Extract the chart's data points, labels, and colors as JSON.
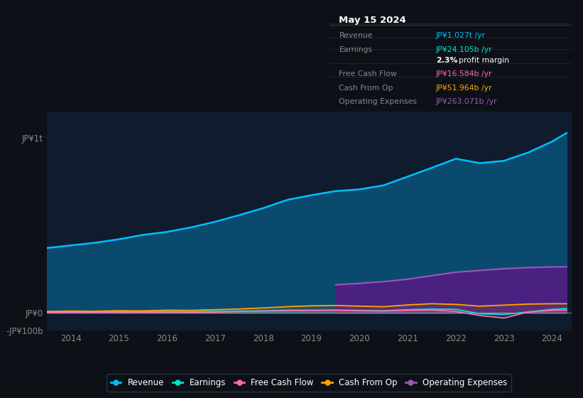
{
  "bg_color": "#0d1117",
  "plot_bg_color": "#0e1c2e",
  "title": "May 15 2024",
  "tooltip": {
    "Revenue": "JP¥1.027t /yr",
    "Earnings": "JP¥24.105b /yr",
    "profit_margin": "2.3% profit margin",
    "Free Cash Flow": "JP¥16.584b /yr",
    "Cash From Op": "JP¥51.964b /yr",
    "Operating Expenses": "JP¥263.071b /yr"
  },
  "years": [
    2013.5,
    2014,
    2014.5,
    2015,
    2015.5,
    2016,
    2016.5,
    2017,
    2017.5,
    2018,
    2018.5,
    2019,
    2019.5,
    2020,
    2020.5,
    2021,
    2021.5,
    2022,
    2022.5,
    2023,
    2023.5,
    2024,
    2024.3
  ],
  "revenue": [
    370,
    385,
    400,
    420,
    445,
    462,
    488,
    520,
    558,
    598,
    645,
    672,
    695,
    705,
    728,
    778,
    828,
    880,
    855,
    868,
    915,
    978,
    1027
  ],
  "earnings": [
    4,
    5,
    5,
    7,
    6,
    8,
    7,
    8,
    10,
    12,
    15,
    15,
    16,
    14,
    12,
    18,
    22,
    20,
    -5,
    -10,
    5,
    20,
    24
  ],
  "free_cash_flow": [
    2,
    3,
    2,
    4,
    3,
    5,
    4,
    5,
    8,
    10,
    12,
    13,
    14,
    12,
    10,
    14,
    16,
    8,
    -15,
    -30,
    5,
    14,
    16
  ],
  "cash_from_op": [
    8,
    10,
    9,
    12,
    11,
    15,
    14,
    18,
    22,
    28,
    35,
    40,
    42,
    38,
    35,
    45,
    52,
    48,
    38,
    44,
    50,
    52,
    52
  ],
  "op_expenses_years": [
    2019.5,
    2020,
    2020.5,
    2021,
    2021.5,
    2022,
    2022.5,
    2023,
    2023.5,
    2024,
    2024.3
  ],
  "op_expenses": [
    160,
    168,
    178,
    192,
    212,
    232,
    242,
    252,
    258,
    262,
    263
  ],
  "ylim": [
    -100,
    1150
  ],
  "ytick_positions": [
    -100,
    0,
    1000
  ],
  "ytick_labels": [
    "-JP¥100b",
    "JP¥0",
    "JP¥1t"
  ],
  "xlim": [
    2013.5,
    2024.4
  ],
  "xticks": [
    2014,
    2015,
    2016,
    2017,
    2018,
    2019,
    2020,
    2021,
    2022,
    2023,
    2024
  ],
  "revenue_color": "#00bfff",
  "revenue_fill": "#0a4a6e",
  "earnings_color": "#00e5cc",
  "free_cash_flow_color": "#ff69b4",
  "cash_from_op_color": "#ffa500",
  "op_expenses_color": "#9b59b6",
  "op_expenses_fill": "#4a2080",
  "tooltip_bg": "#050a10",
  "tooltip_border": "#2a3a4a",
  "legend_bg": "#0d1117",
  "legend_border": "#2a3a4a",
  "zero_line_color": "#cccccc",
  "grid_color": "#1a2a3a"
}
